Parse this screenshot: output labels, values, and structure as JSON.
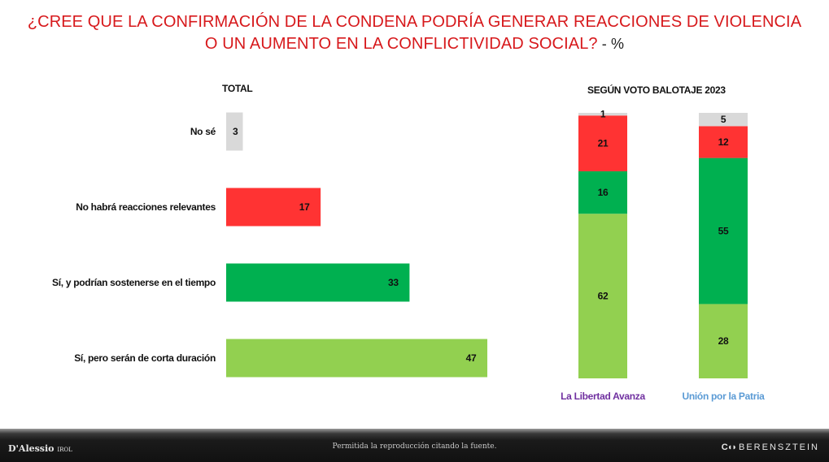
{
  "title": {
    "line1": "¿CREE QUE LA CONFIRMACIÓN DE LA CONDENA PODRÍA GENERAR REACCIONES DE VIOLENCIA",
    "line2": "O UN AUMENTO EN LA CONFLICTIVIDAD SOCIAL?",
    "suffix": " - %"
  },
  "colors": {
    "no_se": "#d9d9d9",
    "no_habra": "#ff3333",
    "si_sostenerse": "#00b050",
    "si_corta": "#92d050",
    "llibertad_label": "#7030a0",
    "union_label": "#5b9bd5"
  },
  "chart_data": [
    {
      "type": "bar",
      "orientation": "horizontal",
      "title": "TOTAL",
      "categories": [
        "No sé",
        "No habrá reacciones relevantes",
        "Sí, y podrían sostenerse en el tiempo",
        "Sí, pero serán de corta duración"
      ],
      "values": [
        3,
        17,
        33,
        47
      ],
      "xlim": [
        0,
        100
      ]
    },
    {
      "type": "bar",
      "orientation": "vertical",
      "stacked": true,
      "title": "SEGÚN VOTO BALOTAJE 2023",
      "categories": [
        "La Libertad Avanza",
        "Unión por la Patria"
      ],
      "series": [
        {
          "name": "Sí, pero serán de corta duración",
          "values": [
            62,
            28
          ]
        },
        {
          "name": "Sí, y podrían sostenerse en el tiempo",
          "values": [
            16,
            55
          ]
        },
        {
          "name": "No habrá reacciones relevantes",
          "values": [
            21,
            12
          ]
        },
        {
          "name": "No sé",
          "values": [
            1,
            5
          ]
        }
      ],
      "ylim": [
        0,
        100
      ]
    }
  ],
  "footer": {
    "note": "Permitida la reproducción citando la fuente.",
    "logo_left": "D'Alessio",
    "logo_left_suffix": "IROL",
    "logo_right_mark": "C◖◗",
    "logo_right": "BERENSZTEIN"
  }
}
